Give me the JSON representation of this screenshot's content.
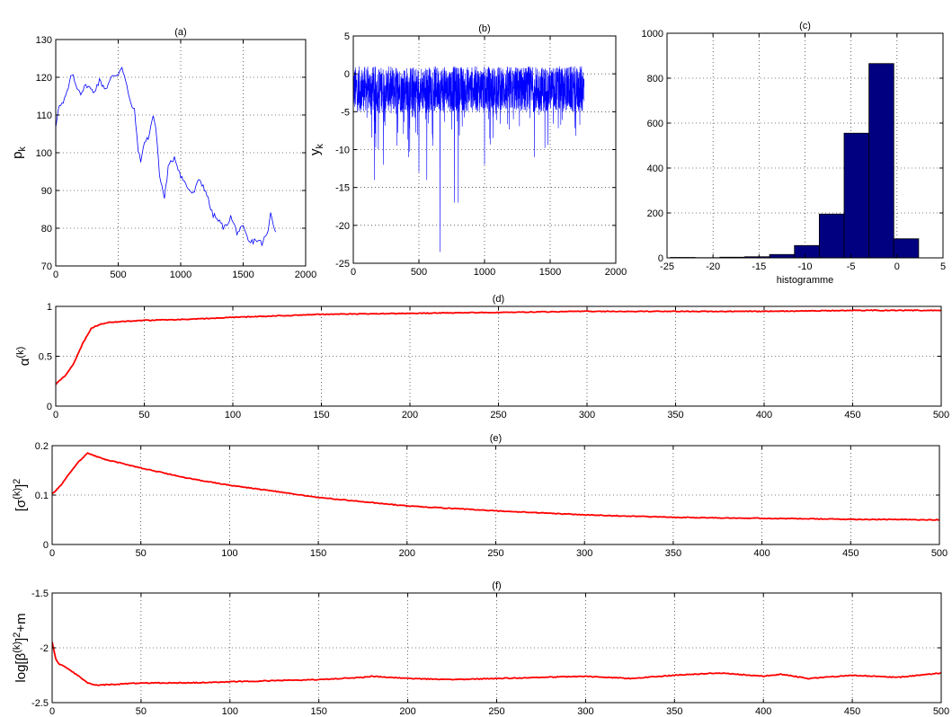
{
  "chart_data": [
    {
      "id": "a",
      "type": "line",
      "title": "(a)",
      "xlabel": "",
      "ylabel": "p",
      "ylabel_sub": "k",
      "xlim": [
        0,
        2000
      ],
      "ylim": [
        70,
        130
      ],
      "xticks": [
        0,
        500,
        1000,
        1500,
        2000
      ],
      "yticks": [
        70,
        80,
        90,
        100,
        110,
        120,
        130
      ],
      "grid": true,
      "color": "#0000ff",
      "x": [
        0,
        20,
        60,
        100,
        130,
        160,
        200,
        250,
        300,
        350,
        400,
        450,
        500,
        530,
        560,
        590,
        630,
        660,
        680,
        700,
        740,
        780,
        810,
        830,
        850,
        870,
        900,
        950,
        1000,
        1050,
        1100,
        1150,
        1200,
        1250,
        1300,
        1350,
        1400,
        1450,
        1500,
        1550,
        1600,
        1650,
        1700,
        1720,
        1760
      ],
      "y": [
        107,
        112,
        113,
        117,
        121,
        118,
        116,
        118,
        116,
        119,
        117,
        120,
        121,
        123,
        119,
        114,
        111,
        101,
        97,
        102,
        104,
        110,
        104,
        94,
        91,
        88,
        96,
        99,
        94,
        91,
        89,
        93,
        90,
        84,
        82,
        80,
        83,
        79,
        80,
        76,
        77,
        76,
        79,
        84,
        79
      ]
    },
    {
      "id": "b",
      "type": "line",
      "title": "(b)",
      "xlabel": "",
      "ylabel": "y",
      "ylabel_sub": "k",
      "xlim": [
        0,
        2000
      ],
      "ylim": [
        -25,
        5
      ],
      "xticks": [
        0,
        500,
        1000,
        1500,
        2000
      ],
      "yticks": [
        -25,
        -20,
        -15,
        -10,
        -5,
        0,
        5
      ],
      "grid": true,
      "color": "#0000ff",
      "n_points": 1760,
      "baseline": -2,
      "spikes": [
        {
          "x": 160,
          "y": -14
        },
        {
          "x": 230,
          "y": -12
        },
        {
          "x": 420,
          "y": -11
        },
        {
          "x": 500,
          "y": -13
        },
        {
          "x": 560,
          "y": -14
        },
        {
          "x": 660,
          "y": -23.5
        },
        {
          "x": 770,
          "y": -17
        },
        {
          "x": 800,
          "y": -17
        },
        {
          "x": 1000,
          "y": -12
        },
        {
          "x": 1380,
          "y": -11
        }
      ],
      "max_value": 3
    },
    {
      "id": "c",
      "type": "bar",
      "title": "(c)",
      "xlabel": "histogramme",
      "ylabel": "",
      "xlim": [
        -25,
        5
      ],
      "ylim": [
        0,
        1000
      ],
      "xticks": [
        -25,
        -20,
        -15,
        -10,
        -5,
        0,
        5
      ],
      "yticks": [
        0,
        200,
        400,
        600,
        800,
        1000
      ],
      "grid": true,
      "bar_color": "#000080",
      "bin_width": 2.7,
      "bin_centers": [
        -23.3,
        -20.6,
        -17.9,
        -15.2,
        -12.5,
        -9.8,
        -7.1,
        -4.4,
        -1.7,
        1.0
      ],
      "values": [
        2,
        1,
        3,
        5,
        15,
        55,
        195,
        555,
        865,
        85
      ]
    },
    {
      "id": "d",
      "type": "line",
      "title": "(d)",
      "xlabel": "",
      "ylabel": "α",
      "ylabel_sup": "(k)",
      "xlim": [
        0,
        500
      ],
      "ylim": [
        0,
        1
      ],
      "xticks": [
        0,
        50,
        100,
        150,
        200,
        250,
        300,
        350,
        400,
        450,
        500
      ],
      "yticks": [
        0,
        0.5,
        1
      ],
      "grid": true,
      "color": "#ff0000",
      "x": [
        0,
        5,
        10,
        15,
        20,
        25,
        30,
        40,
        50,
        75,
        100,
        150,
        200,
        250,
        300,
        350,
        400,
        450,
        500
      ],
      "y": [
        0.22,
        0.3,
        0.42,
        0.62,
        0.78,
        0.82,
        0.84,
        0.85,
        0.86,
        0.87,
        0.89,
        0.92,
        0.93,
        0.94,
        0.95,
        0.95,
        0.95,
        0.96,
        0.96
      ]
    },
    {
      "id": "e",
      "type": "line",
      "title": "(e)",
      "xlabel": "",
      "ylabel": "[σ",
      "ylabel_sup": "(k)",
      "ylabel_tail": "]",
      "ylabel_tail_sup": "2",
      "xlim": [
        0,
        500
      ],
      "ylim": [
        0,
        0.2
      ],
      "xticks": [
        0,
        50,
        100,
        150,
        200,
        250,
        300,
        350,
        400,
        450,
        500
      ],
      "yticks": [
        0,
        0.1,
        0.2
      ],
      "grid": true,
      "color": "#ff0000",
      "x": [
        0,
        5,
        10,
        15,
        20,
        25,
        30,
        50,
        75,
        100,
        125,
        150,
        200,
        250,
        300,
        350,
        400,
        450,
        500
      ],
      "y": [
        0.102,
        0.12,
        0.145,
        0.168,
        0.185,
        0.178,
        0.172,
        0.155,
        0.135,
        0.12,
        0.108,
        0.095,
        0.078,
        0.068,
        0.06,
        0.055,
        0.053,
        0.051,
        0.05
      ]
    },
    {
      "id": "f",
      "type": "line",
      "title": "(f)",
      "xlabel": "",
      "ylabel": "log[β",
      "ylabel_sup": "(k)",
      "ylabel_tail": "]",
      "ylabel_tail_sup": "2",
      "ylabel_end": "+m",
      "xlim": [
        0,
        500
      ],
      "ylim": [
        -2.5,
        -1.5
      ],
      "xticks": [
        0,
        50,
        100,
        150,
        200,
        250,
        300,
        350,
        400,
        450,
        500
      ],
      "yticks": [
        -2.5,
        -2,
        -1.5
      ],
      "grid": true,
      "color": "#ff0000",
      "x": [
        0,
        2,
        4,
        8,
        15,
        20,
        25,
        40,
        50,
        75,
        100,
        125,
        150,
        175,
        180,
        200,
        225,
        250,
        275,
        300,
        325,
        350,
        375,
        400,
        410,
        425,
        450,
        475,
        500
      ],
      "y": [
        -1.95,
        -2.1,
        -2.15,
        -2.18,
        -2.26,
        -2.32,
        -2.34,
        -2.33,
        -2.32,
        -2.32,
        -2.31,
        -2.3,
        -2.29,
        -2.27,
        -2.26,
        -2.28,
        -2.29,
        -2.28,
        -2.27,
        -2.26,
        -2.28,
        -2.25,
        -2.23,
        -2.26,
        -2.24,
        -2.28,
        -2.25,
        -2.27,
        -2.23
      ]
    }
  ]
}
